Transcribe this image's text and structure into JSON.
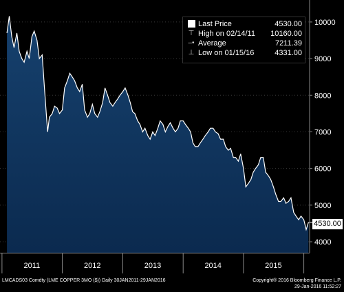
{
  "chart_data": {
    "type": "area",
    "title": "",
    "xlabel": "",
    "ylabel": "",
    "ylim": [
      3700,
      10600
    ],
    "x_range": [
      "2010-12-20",
      "2016-02-05"
    ],
    "y_ticks": [
      4000,
      5000,
      6000,
      7000,
      8000,
      9000,
      10000
    ],
    "x_tick_labels": [
      {
        "label": "2011",
        "center": "2011-07-01"
      },
      {
        "label": "2012",
        "center": "2012-07-01"
      },
      {
        "label": "2013",
        "center": "2013-07-01"
      },
      {
        "label": "2014",
        "center": "2014-07-01"
      },
      {
        "label": "2015",
        "center": "2015-07-01"
      }
    ],
    "year_boundaries": [
      "2011-01-01",
      "2012-01-01",
      "2013-01-01",
      "2014-01-01",
      "2015-01-01",
      "2016-01-01"
    ],
    "fill_color": "#0b2a4f",
    "fill_top_color": "#16416e",
    "line_color": "#ffffff",
    "series": [
      {
        "x": [
          "2011-01-31",
          "2011-02-14",
          "2011-03-01",
          "2011-03-15",
          "2011-04-01",
          "2011-04-15",
          "2011-05-01",
          "2011-05-15",
          "2011-06-01",
          "2011-06-15",
          "2011-07-01",
          "2011-07-15",
          "2011-08-01",
          "2011-08-15",
          "2011-09-01",
          "2011-09-15",
          "2011-10-04",
          "2011-10-15",
          "2011-11-01",
          "2011-11-15",
          "2011-12-01",
          "2011-12-15",
          "2012-01-01",
          "2012-01-15",
          "2012-02-01",
          "2012-02-15",
          "2012-03-01",
          "2012-03-15",
          "2012-04-01",
          "2012-04-15",
          "2012-05-01",
          "2012-05-15",
          "2012-06-01",
          "2012-06-15",
          "2012-07-01",
          "2012-07-15",
          "2012-08-01",
          "2012-08-15",
          "2012-09-01",
          "2012-09-15",
          "2012-10-01",
          "2012-10-15",
          "2012-11-01",
          "2012-11-15",
          "2012-12-01",
          "2012-12-15",
          "2013-01-01",
          "2013-01-15",
          "2013-02-01",
          "2013-02-15",
          "2013-03-01",
          "2013-03-15",
          "2013-04-01",
          "2013-04-15",
          "2013-05-01",
          "2013-05-15",
          "2013-06-01",
          "2013-06-15",
          "2013-07-01",
          "2013-07-15",
          "2013-08-01",
          "2013-08-15",
          "2013-09-01",
          "2013-09-15",
          "2013-10-01",
          "2013-10-15",
          "2013-11-01",
          "2013-11-15",
          "2013-12-01",
          "2013-12-15",
          "2014-01-01",
          "2014-01-15",
          "2014-02-01",
          "2014-02-15",
          "2014-03-01",
          "2014-03-15",
          "2014-04-01",
          "2014-04-15",
          "2014-05-01",
          "2014-05-15",
          "2014-06-01",
          "2014-06-15",
          "2014-07-01",
          "2014-07-15",
          "2014-08-01",
          "2014-08-15",
          "2014-09-01",
          "2014-09-15",
          "2014-10-01",
          "2014-10-15",
          "2014-11-01",
          "2014-11-15",
          "2014-12-01",
          "2014-12-15",
          "2015-01-01",
          "2015-01-15",
          "2015-02-01",
          "2015-02-15",
          "2015-03-01",
          "2015-03-15",
          "2015-04-01",
          "2015-04-15",
          "2015-05-01",
          "2015-05-15",
          "2015-06-01",
          "2015-06-15",
          "2015-07-01",
          "2015-07-15",
          "2015-08-01",
          "2015-08-15",
          "2015-09-01",
          "2015-09-15",
          "2015-10-01",
          "2015-10-15",
          "2015-11-01",
          "2015-11-15",
          "2015-12-01",
          "2015-12-15",
          "2016-01-01",
          "2016-01-15",
          "2016-01-29"
        ],
        "values": [
          9700,
          10160,
          9600,
          9300,
          9700,
          9200,
          9000,
          8900,
          9200,
          9000,
          9600,
          9750,
          9500,
          9000,
          9100,
          8200,
          7000,
          7400,
          7500,
          7700,
          7650,
          7500,
          7600,
          8200,
          8400,
          8600,
          8500,
          8400,
          8200,
          8100,
          8300,
          7600,
          7400,
          7500,
          7750,
          7500,
          7400,
          7550,
          7800,
          8200,
          8000,
          7800,
          7700,
          7800,
          7900,
          8000,
          8100,
          8200,
          8000,
          7800,
          7550,
          7500,
          7300,
          7200,
          7000,
          7100,
          6900,
          6800,
          7000,
          6900,
          7100,
          7300,
          7200,
          7000,
          7150,
          7250,
          7100,
          7000,
          7100,
          7300,
          7300,
          7200,
          7100,
          7000,
          6700,
          6600,
          6600,
          6700,
          6800,
          6900,
          7000,
          7100,
          7100,
          7000,
          6950,
          6800,
          6800,
          6600,
          6500,
          6550,
          6300,
          6300,
          6200,
          6400,
          6000,
          5500,
          5600,
          5700,
          5900,
          6000,
          6100,
          6300,
          6300,
          5900,
          5800,
          5700,
          5500,
          5300,
          5100,
          5100,
          5200,
          5050,
          5100,
          5200,
          4800,
          4700,
          4600,
          4700,
          4600,
          4331,
          4530
        ]
      }
    ]
  },
  "legend": {
    "last_price_label": "Last Price",
    "last_price_value": "4530.00",
    "high_label": "High on 02/14/11",
    "high_value": "10160.00",
    "average_label": "Average",
    "average_value": "7211.39",
    "low_label": "Low on 01/15/16",
    "low_value": "4331.00"
  },
  "last_badge": "4530.00",
  "footer": {
    "left": "LMCADS03 Comdty (LME COPPER    3MO ($))  Daily 30JAN2011-29JAN2016",
    "right_line1": "Copyright® 2016 Bloomberg Finance L.P.",
    "right_line2": "29-Jan-2016 11:52:27"
  }
}
